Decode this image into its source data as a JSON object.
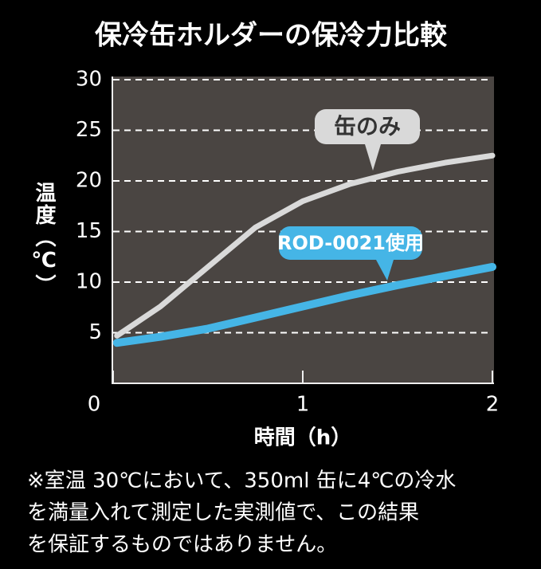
{
  "chart_data": {
    "type": "line",
    "title": "保冷缶ホルダーの保冷力比較",
    "x_label": "時間（h）",
    "y_label": "温度（℃）",
    "x": [
      0.02,
      0.25,
      0.5,
      0.75,
      1.0,
      1.25,
      1.5,
      1.75,
      2.0
    ],
    "series": [
      {
        "name": "缶のみ",
        "color": "#d9d9d9",
        "values": [
          4.7,
          7.6,
          11.5,
          15.4,
          18.0,
          19.7,
          20.9,
          21.8,
          22.5
        ]
      },
      {
        "name": "ROD-0021使用",
        "color": "#45b5e6",
        "values": [
          4.0,
          4.6,
          5.4,
          6.5,
          7.6,
          8.7,
          9.7,
          10.6,
          11.5
        ]
      }
    ],
    "xlim": [
      0,
      2
    ],
    "xticks": [
      0,
      1,
      2
    ],
    "ylim": [
      0,
      30
    ],
    "yticks": [
      5,
      10,
      15,
      20,
      25,
      30
    ],
    "grid": true,
    "notes": [
      "※室温 30℃において、350ml 缶に4℃の冷水",
      "を満量入れて測定した実測値で、この結果",
      "を保証するものではありません。"
    ]
  }
}
